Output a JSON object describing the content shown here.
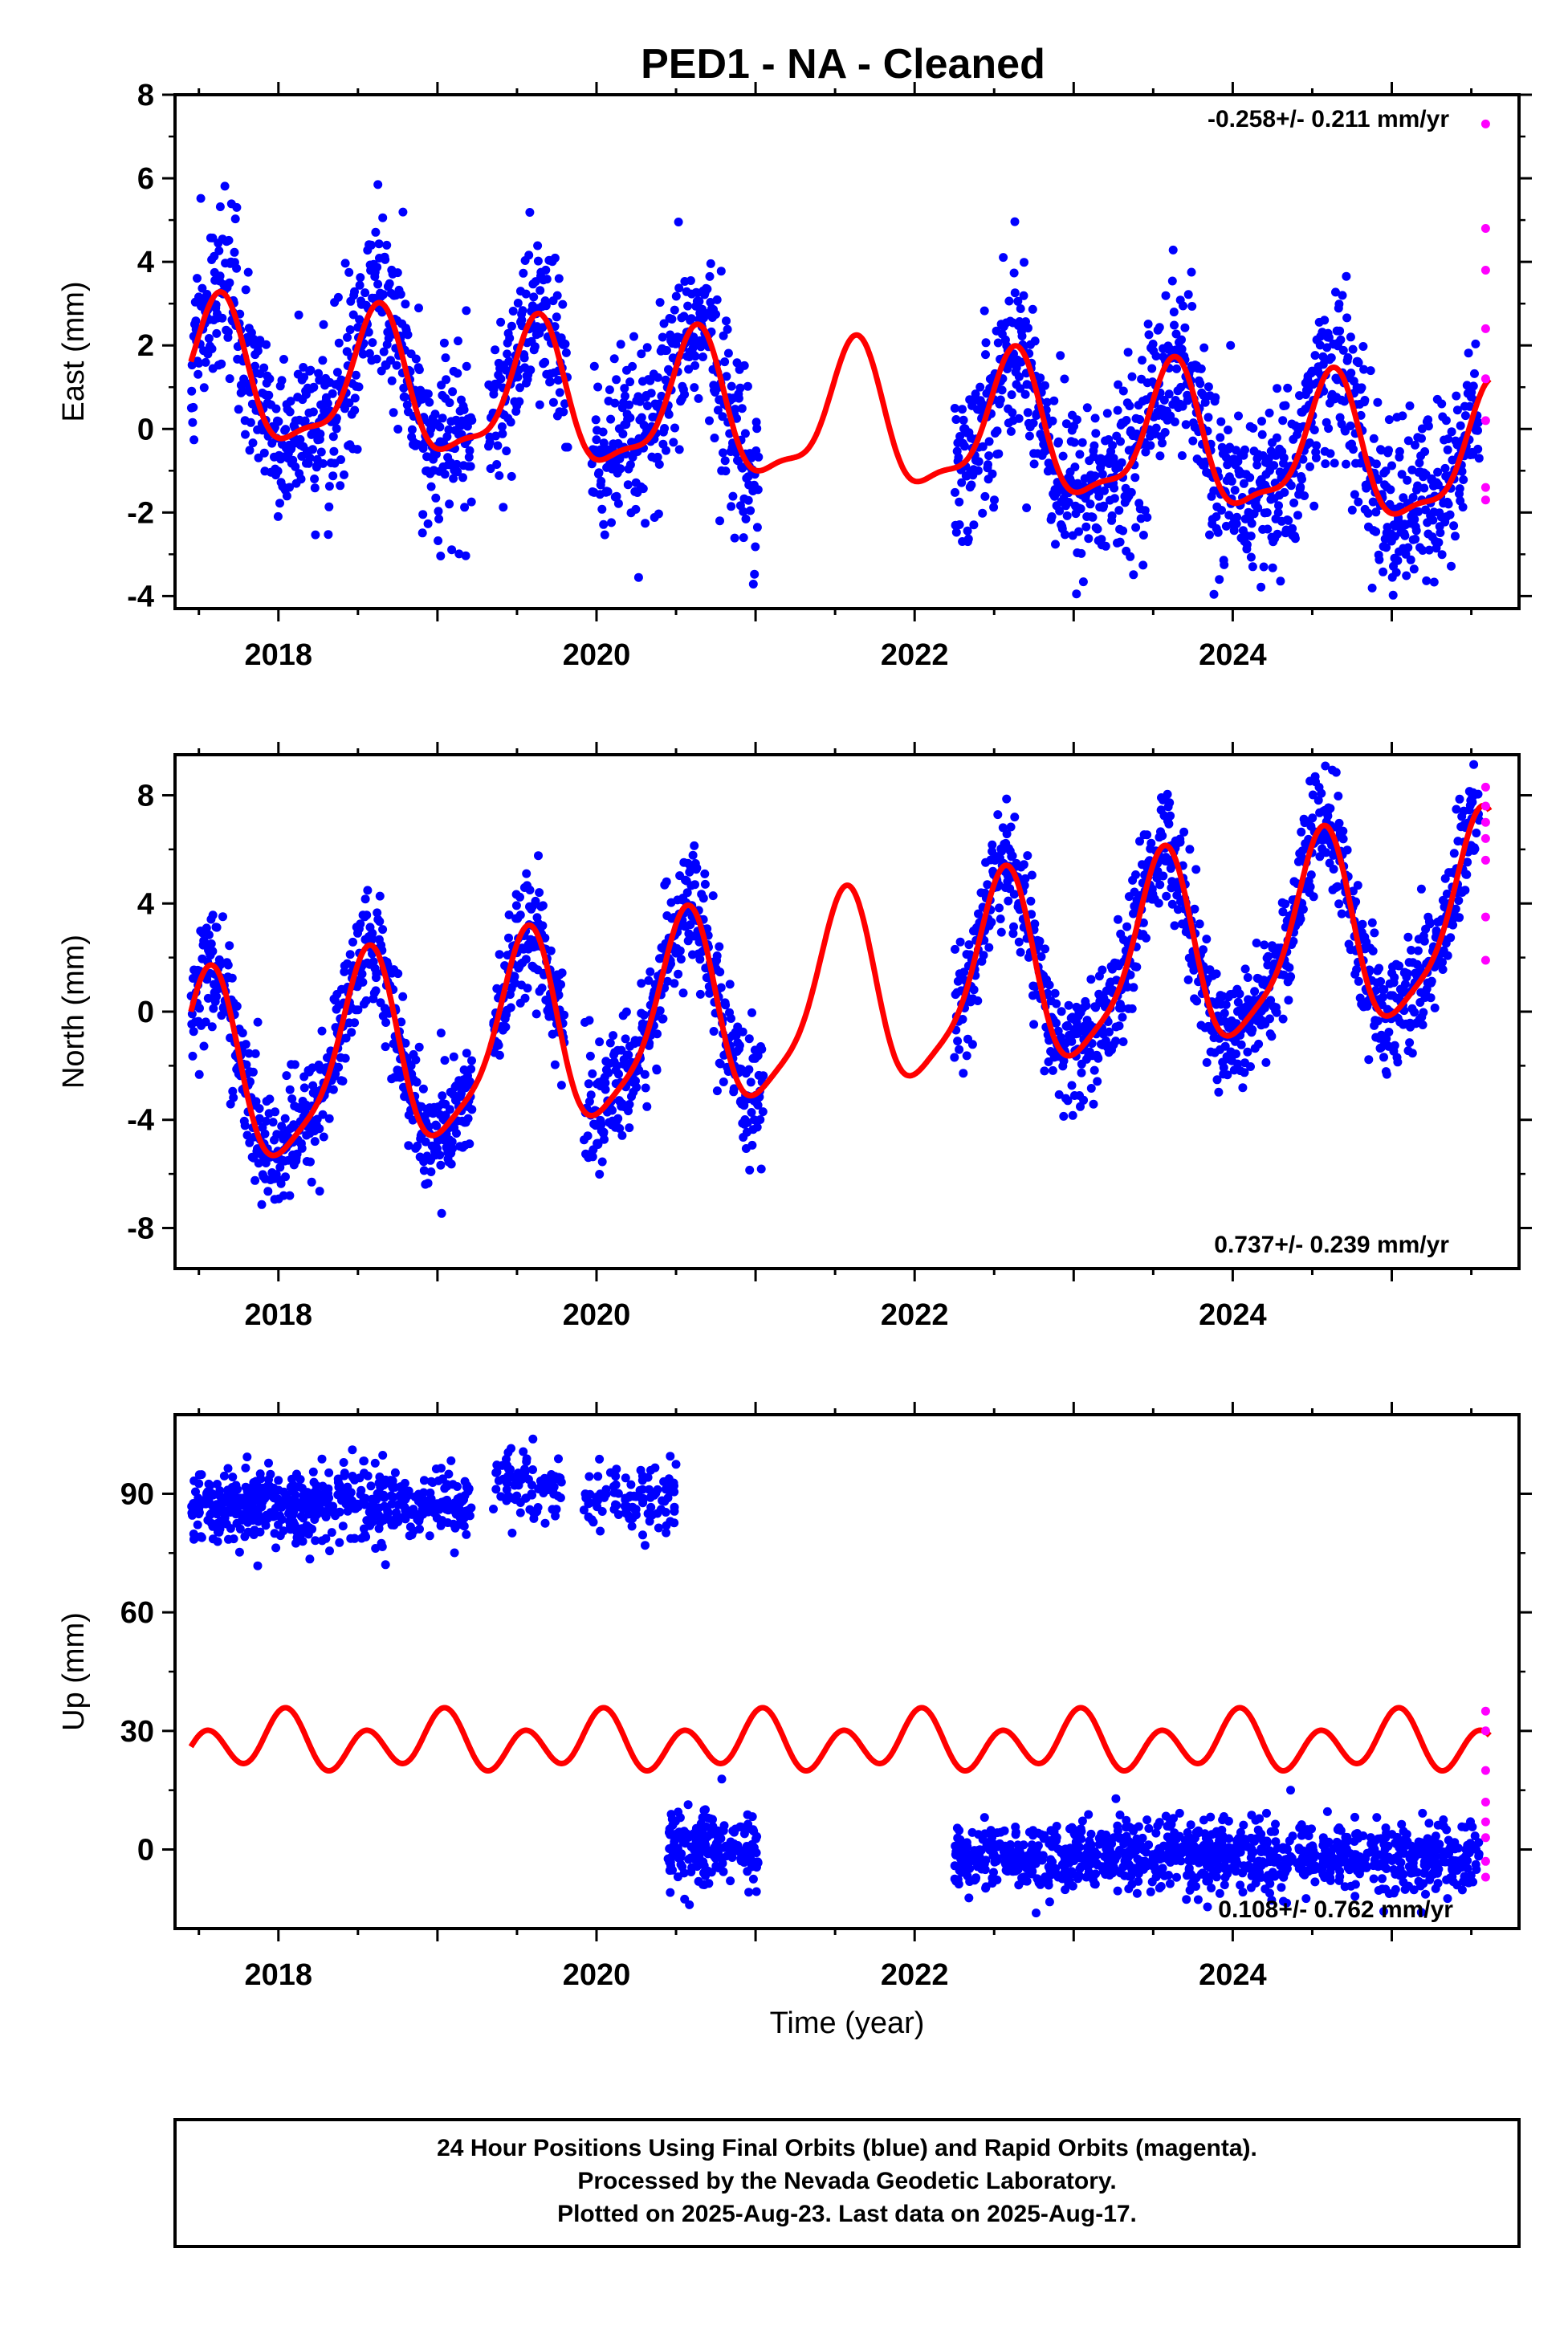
{
  "figure": {
    "title": "PED1  - NA - Cleaned",
    "xlabel": "Time (year)",
    "footer": [
      "24 Hour Positions Using Final Orbits (blue) and Rapid Orbits (magenta).",
      "Processed by the Nevada Geodetic Laboratory.",
      "Plotted on 2025-Aug-23. Last data on 2025-Aug-17."
    ],
    "colors": {
      "final": "#0000ff",
      "rapid": "#ff00ff",
      "model": "#ff0000",
      "axis": "#000000"
    }
  },
  "chart_data": [
    {
      "type": "scatter",
      "ylabel": "East (mm)",
      "rate_label": "-0.258+/- 0.211 mm/yr",
      "xlim": [
        2017.35,
        2025.8
      ],
      "ylim": [
        -4.3,
        8.0
      ],
      "yticks": [
        -4,
        -2,
        0,
        2,
        4,
        6,
        8
      ],
      "xticks": [
        2018,
        2020,
        2022,
        2024
      ],
      "trend": {
        "offset": 0.2,
        "slope": -0.258,
        "ref_year": 2021.5
      },
      "seasonal": {
        "annual_amp": 1.6,
        "annual_peak": 2017.62,
        "semi_amp": 0.5,
        "semi_peak": 2017.65
      },
      "scatter_sigma": 1.05,
      "final_segments": [
        [
          2017.45,
          2021.02
        ],
        [
          2022.25,
          2025.55
        ]
      ],
      "final_points_per_year": 320,
      "gaps": [
        [
          2019.22,
          2019.32
        ],
        [
          2019.82,
          2019.97
        ]
      ],
      "rapid_points": [
        [
          2025.59,
          7.3
        ],
        [
          2025.59,
          4.8
        ],
        [
          2025.59,
          3.8
        ],
        [
          2025.59,
          2.4
        ],
        [
          2025.59,
          1.2
        ],
        [
          2025.59,
          0.2
        ],
        [
          2025.59,
          -1.4
        ],
        [
          2025.59,
          -1.7
        ]
      ]
    },
    {
      "type": "scatter",
      "ylabel": "North (mm)",
      "rate_label": "0.737+/- 0.239 mm/yr",
      "xlim": [
        2017.35,
        2025.8
      ],
      "ylim": [
        -9.5,
        9.5
      ],
      "yticks": [
        -8,
        -4,
        0,
        4,
        8
      ],
      "xticks": [
        2018,
        2020,
        2022,
        2024
      ],
      "trend": {
        "offset": 0.4,
        "slope": 0.737,
        "ref_year": 2021.5
      },
      "seasonal": {
        "annual_amp": 3.5,
        "annual_peak": 2017.55,
        "semi_amp": 0.8,
        "semi_peak": 2017.6
      },
      "scatter_sigma": 1.1,
      "final_segments": [
        [
          2017.45,
          2021.05
        ],
        [
          2022.25,
          2025.55
        ]
      ],
      "final_points_per_year": 320,
      "gaps": [
        [
          2019.22,
          2019.35
        ],
        [
          2019.8,
          2019.92
        ]
      ],
      "rapid_points": [
        [
          2025.59,
          8.3
        ],
        [
          2025.59,
          7.6
        ],
        [
          2025.59,
          7.0
        ],
        [
          2025.59,
          6.4
        ],
        [
          2025.59,
          5.6
        ],
        [
          2025.59,
          3.5
        ],
        [
          2025.59,
          1.9
        ]
      ]
    },
    {
      "type": "scatter",
      "ylabel": "Up (mm)",
      "rate_label": "0.108+/- 0.762 mm/yr",
      "xlim": [
        2017.35,
        2025.8
      ],
      "ylim": [
        -20,
        110
      ],
      "yticks": [
        0,
        30,
        60,
        90
      ],
      "xticks": [
        2018,
        2020,
        2022,
        2024
      ],
      "model_offset": 27,
      "seasonal": {
        "annual_amp": 3.0,
        "annual_peak": 2018.0,
        "semi_amp": 6.0,
        "semi_peak": 2018.05
      },
      "clusters": [
        {
          "x": [
            2017.45,
            2019.22
          ],
          "mean": 87,
          "sigma": 4.5,
          "per_year": 320
        },
        {
          "x": [
            2019.35,
            2019.78
          ],
          "mean": 92,
          "sigma": 4.5,
          "per_year": 200
        },
        {
          "x": [
            2019.92,
            2020.5
          ],
          "mean": 89,
          "sigma": 4.0,
          "per_year": 180
        },
        {
          "x": [
            2020.45,
            2021.02
          ],
          "mean": 0,
          "sigma": 5.0,
          "per_year": 320
        },
        {
          "x": [
            2022.25,
            2025.55
          ],
          "mean": -2,
          "sigma": 4.5,
          "per_year": 320
        }
      ],
      "rapid_points": [
        [
          2025.59,
          35
        ],
        [
          2025.59,
          30
        ],
        [
          2025.59,
          20
        ],
        [
          2025.59,
          12
        ],
        [
          2025.59,
          7
        ],
        [
          2025.59,
          3
        ],
        [
          2025.59,
          -3
        ],
        [
          2025.59,
          -7
        ]
      ]
    }
  ]
}
